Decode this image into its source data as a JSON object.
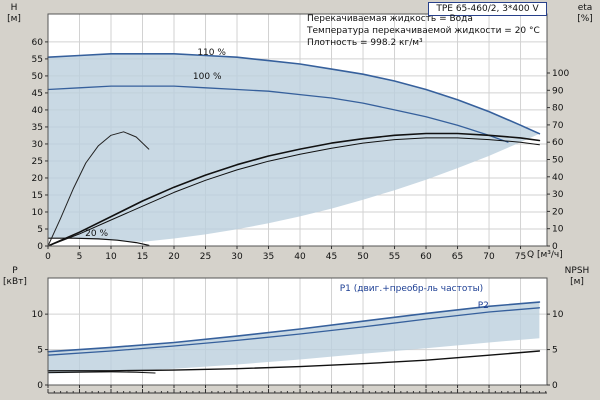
{
  "header": {
    "title": "TPE 65-460/2, 3*400 V"
  },
  "info_lines": [
    "Перекачиваемая жидкость = Вода",
    "Температура перекачиваемой жидкости = 20 °C",
    "Плотность = 998.2 кг/м³"
  ],
  "axes": {
    "top_left_unit": "H",
    "top_left_dim": "[м]",
    "top_right_unit": "eta",
    "top_right_dim": "[%]",
    "x_label": "Q [м³/ч]",
    "bottom_left_unit": "P",
    "bottom_left_dim": "[кВт]",
    "bottom_right_unit": "NPSH",
    "bottom_right_dim": "[м]"
  },
  "colors": {
    "curve_blue": "#36609c",
    "curve_black": "#111111",
    "label_blue": "#1d3f94",
    "region_fill": "#bccfdd",
    "grid": "#d2d2d2",
    "frame": "#555555",
    "background": "#d5d2cb"
  },
  "chart_data": [
    {
      "type": "line",
      "name": "head-efficiency-chart",
      "xlabel": "Q [м³/ч]",
      "ylabel_left": "H [м]",
      "ylabel_right": "eta [%]",
      "xlim": [
        0,
        79.2
      ],
      "ylim_left": [
        0,
        68.2
      ],
      "ylim_right": [
        0,
        134.1
      ],
      "x_ticks": [
        0,
        5,
        10,
        15,
        20,
        25,
        30,
        35,
        40,
        45,
        50,
        55,
        60,
        65,
        70,
        75
      ],
      "y_ticks_left": [
        0,
        5,
        10,
        15,
        20,
        25,
        30,
        35,
        40,
        45,
        50,
        55,
        60
      ],
      "y_ticks_right": [
        0,
        10,
        20,
        30,
        40,
        50,
        60,
        70,
        80,
        90,
        100
      ],
      "x_tick_labels": true,
      "region": {
        "points": [
          [
            0,
            55.5
          ],
          [
            10,
            56.5
          ],
          [
            20,
            56.5
          ],
          [
            30,
            55.5
          ],
          [
            40,
            53.5
          ],
          [
            50,
            50.5
          ],
          [
            55,
            48.5
          ],
          [
            60,
            46
          ],
          [
            65,
            43
          ],
          [
            70,
            39.5
          ],
          [
            75,
            35.5
          ],
          [
            78,
            33
          ],
          [
            74,
            29.7
          ],
          [
            70,
            26.5
          ],
          [
            65,
            22.9
          ],
          [
            60,
            19.5
          ],
          [
            55,
            16.4
          ],
          [
            50,
            13.6
          ],
          [
            45,
            11
          ],
          [
            40,
            8.7
          ],
          [
            35,
            6.7
          ],
          [
            30,
            4.9
          ],
          [
            25,
            3.4
          ],
          [
            20,
            2.2
          ],
          [
            15,
            1.2
          ],
          [
            11,
            1.7
          ],
          [
            8,
            2.1
          ],
          [
            4,
            2.3
          ],
          [
            0,
            2.3
          ]
        ]
      },
      "series": [
        {
          "name": "speed-110-head-curve",
          "axis": "left",
          "color": "#36609c",
          "width": 1.6,
          "points": [
            [
              0,
              55.5
            ],
            [
              5,
              56
            ],
            [
              10,
              56.5
            ],
            [
              15,
              56.5
            ],
            [
              20,
              56.5
            ],
            [
              25,
              56
            ],
            [
              30,
              55.5
            ],
            [
              35,
              54.5
            ],
            [
              40,
              53.5
            ],
            [
              45,
              52
            ],
            [
              50,
              50.5
            ],
            [
              55,
              48.5
            ],
            [
              60,
              46
            ],
            [
              65,
              43
            ],
            [
              70,
              39.5
            ],
            [
              75,
              35.5
            ],
            [
              78,
              33
            ]
          ]
        },
        {
          "name": "speed-100-head-curve",
          "axis": "left",
          "color": "#36609c",
          "width": 1.3,
          "points": [
            [
              0,
              46
            ],
            [
              5,
              46.5
            ],
            [
              10,
              47
            ],
            [
              15,
              47
            ],
            [
              20,
              47
            ],
            [
              25,
              46.5
            ],
            [
              30,
              46
            ],
            [
              35,
              45.5
            ],
            [
              40,
              44.5
            ],
            [
              45,
              43.5
            ],
            [
              50,
              42
            ],
            [
              55,
              40
            ],
            [
              60,
              38
            ],
            [
              65,
              35.5
            ],
            [
              70,
              32.5
            ],
            [
              73,
              30.5
            ]
          ]
        },
        {
          "name": "speed-20-head-curve",
          "axis": "left",
          "color": "#111111",
          "width": 1.2,
          "points": [
            [
              0,
              2.3
            ],
            [
              4,
              2.3
            ],
            [
              8,
              2.1
            ],
            [
              11,
              1.7
            ],
            [
              14,
              1.0
            ],
            [
              16,
              0.2
            ]
          ]
        },
        {
          "name": "eta-pump-curve",
          "axis": "right",
          "color": "#111111",
          "width": 1.6,
          "points": [
            [
              0,
              0
            ],
            [
              5,
              8
            ],
            [
              10,
              17
            ],
            [
              15,
              26
            ],
            [
              20,
              34
            ],
            [
              25,
              41
            ],
            [
              30,
              47
            ],
            [
              35,
              52
            ],
            [
              40,
              56
            ],
            [
              45,
              59.5
            ],
            [
              50,
              62
            ],
            [
              55,
              64
            ],
            [
              60,
              65
            ],
            [
              65,
              65
            ],
            [
              70,
              64
            ],
            [
              75,
              62.5
            ],
            [
              78,
              61
            ]
          ]
        },
        {
          "name": "eta-pump-motor-curve",
          "axis": "right",
          "color": "#111111",
          "width": 1.0,
          "points": [
            [
              0,
              0
            ],
            [
              5,
              7
            ],
            [
              10,
              15
            ],
            [
              15,
              23
            ],
            [
              20,
              31
            ],
            [
              25,
              38
            ],
            [
              30,
              44
            ],
            [
              35,
              49
            ],
            [
              40,
              53
            ],
            [
              45,
              56.5
            ],
            [
              50,
              59.5
            ],
            [
              55,
              61.5
            ],
            [
              60,
              62.5
            ],
            [
              65,
              62.5
            ],
            [
              70,
              61.5
            ],
            [
              75,
              60
            ],
            [
              78,
              58.5
            ]
          ]
        },
        {
          "name": "eta-20-curve",
          "axis": "right",
          "color": "#222222",
          "width": 1.0,
          "points": [
            [
              0,
              0
            ],
            [
              2,
              16
            ],
            [
              4,
              33
            ],
            [
              6,
              48
            ],
            [
              8,
              58
            ],
            [
              10,
              64
            ],
            [
              12,
              66
            ],
            [
              14,
              63
            ],
            [
              16,
              56
            ]
          ]
        }
      ],
      "annotations": [
        {
          "text": "110 %",
          "x": 23.7,
          "y": 56.2,
          "color": "#111111"
        },
        {
          "text": "100 %",
          "x": 23.0,
          "y": 49.1,
          "color": "#111111"
        },
        {
          "text": "20 %",
          "x": 5.9,
          "y": 2.9,
          "color": "#111111"
        }
      ]
    },
    {
      "type": "line",
      "name": "power-npsh-chart",
      "xlabel": "Q [м³/ч]",
      "ylabel_left": "P [кВт]",
      "ylabel_right": "NPSH [м]",
      "xlim": [
        0,
        79.2
      ],
      "ylim_left": [
        0,
        15.1
      ],
      "ylim_right": [
        0,
        15.1
      ],
      "x_ticks": [
        0,
        5,
        10,
        15,
        20,
        25,
        30,
        35,
        40,
        45,
        50,
        55,
        60,
        65,
        70,
        75
      ],
      "y_ticks_left": [
        0,
        5,
        10
      ],
      "y_ticks_right": [
        0,
        5,
        10
      ],
      "x_tick_labels": false,
      "region": {
        "points": [
          [
            0,
            4.7
          ],
          [
            10,
            5.3
          ],
          [
            20,
            6.0
          ],
          [
            30,
            6.9
          ],
          [
            40,
            7.9
          ],
          [
            50,
            9.0
          ],
          [
            60,
            10.1
          ],
          [
            70,
            11.1
          ],
          [
            78,
            11.7
          ],
          [
            78,
            6.6
          ],
          [
            70,
            6.0
          ],
          [
            60,
            5.2
          ],
          [
            50,
            4.4
          ],
          [
            40,
            3.6
          ],
          [
            30,
            2.9
          ],
          [
            20,
            2.3
          ],
          [
            10,
            1.9
          ],
          [
            0,
            1.6
          ]
        ]
      },
      "series": [
        {
          "name": "p1-power-curve",
          "axis": "left",
          "color": "#36609c",
          "width": 1.6,
          "points": [
            [
              0,
              4.7
            ],
            [
              10,
              5.3
            ],
            [
              20,
              6.0
            ],
            [
              30,
              6.9
            ],
            [
              40,
              7.9
            ],
            [
              50,
              9.0
            ],
            [
              60,
              10.1
            ],
            [
              70,
              11.1
            ],
            [
              78,
              11.7
            ]
          ]
        },
        {
          "name": "p2-power-curve",
          "axis": "left",
          "color": "#36609c",
          "width": 1.3,
          "points": [
            [
              0,
              4.2
            ],
            [
              10,
              4.8
            ],
            [
              20,
              5.5
            ],
            [
              30,
              6.3
            ],
            [
              40,
              7.2
            ],
            [
              50,
              8.2
            ],
            [
              60,
              9.3
            ],
            [
              70,
              10.3
            ],
            [
              78,
              10.9
            ]
          ]
        },
        {
          "name": "npsh-curve",
          "axis": "right",
          "color": "#111111",
          "width": 1.4,
          "points": [
            [
              0,
              2.0
            ],
            [
              10,
              2.0
            ],
            [
              20,
              2.1
            ],
            [
              30,
              2.3
            ],
            [
              40,
              2.6
            ],
            [
              50,
              3.0
            ],
            [
              60,
              3.5
            ],
            [
              70,
              4.2
            ],
            [
              78,
              4.8
            ]
          ]
        },
        {
          "name": "p-20-power-curve",
          "axis": "left",
          "color": "#111111",
          "width": 1.0,
          "points": [
            [
              0,
              1.75
            ],
            [
              5,
              1.8
            ],
            [
              10,
              1.85
            ],
            [
              14,
              1.8
            ],
            [
              17,
              1.7
            ]
          ]
        }
      ],
      "annotations": [
        {
          "text": "P1 (двиг.+преобр-ль частоты)",
          "x": 46.3,
          "y": 13.3,
          "color": "#1d3f94"
        },
        {
          "text": "P2",
          "x": 68.2,
          "y": 10.9,
          "color": "#1d3f94"
        }
      ]
    }
  ]
}
